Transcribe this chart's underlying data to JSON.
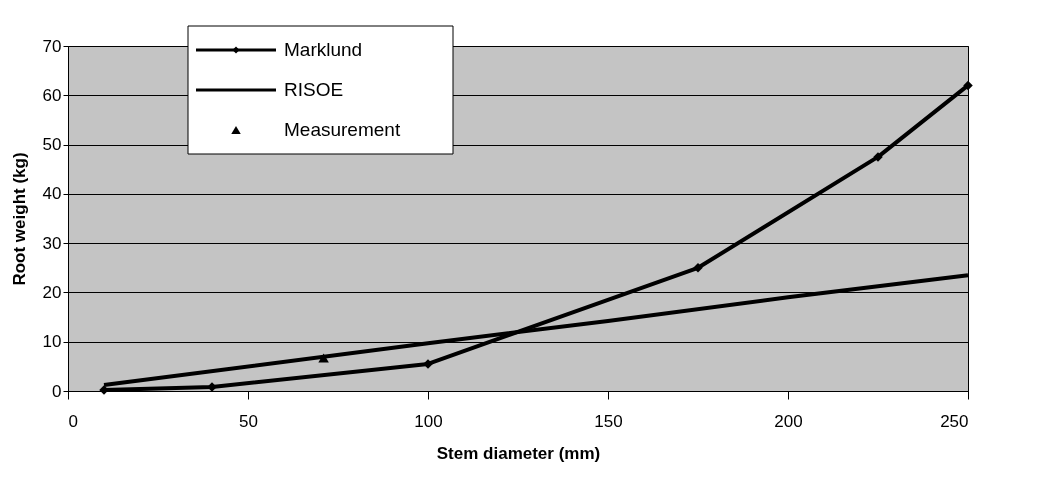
{
  "chart_data": {
    "type": "line",
    "xlabel": "Stem diameter (mm)",
    "ylabel": "Root weight (kg)",
    "xlim": [
      0,
      250
    ],
    "xticks": [
      0,
      50,
      100,
      150,
      200,
      250
    ],
    "ylim": [
      0,
      70
    ],
    "yticks": [
      0,
      10,
      20,
      30,
      40,
      50,
      60,
      70
    ],
    "grid": "y",
    "legend": "top left",
    "series": [
      {
        "name": "Marklund",
        "marker": "diamond",
        "color": "#000000",
        "x": [
          10,
          40,
          100,
          175,
          225,
          250
        ],
        "values": [
          0.2,
          0.8,
          5.5,
          25,
          47.5,
          62
        ]
      },
      {
        "name": "RISOE",
        "marker": "none",
        "color": "#000000",
        "x": [
          10,
          100,
          150,
          200,
          250
        ],
        "values": [
          1.2,
          9.7,
          14.2,
          19,
          23.5
        ]
      },
      {
        "name": "Measurement",
        "type": "scatter",
        "marker": "triangle",
        "color": "#000000",
        "x": [
          71
        ],
        "values": [
          6.7
        ]
      }
    ]
  }
}
